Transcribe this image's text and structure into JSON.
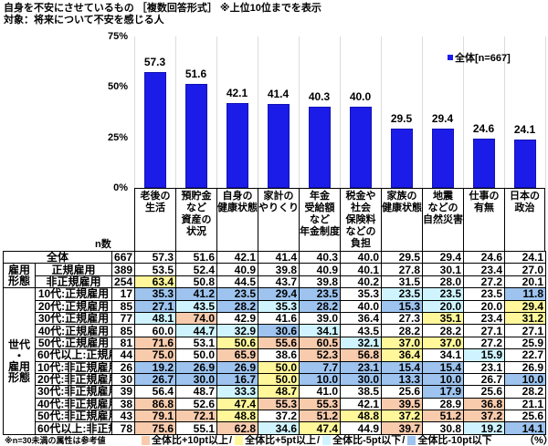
{
  "header": {
    "title": "自身を不安にさせているもの ［複数回答形式］ ※上位10位までを表示",
    "subtitle": "対象：将来について不安を感じる人"
  },
  "chart_data": {
    "type": "bar",
    "title": "自身を不安にさせているもの［複数回答形式］※上位10位までを表示",
    "subtitle": "対象：将来について不安を感じる人",
    "categories": [
      "老後の生活",
      "預貯金など資産の状況",
      "自身の健康状態",
      "家計のやりくり",
      "年金受給額など年金制度",
      "税金や社会保険料などの負担",
      "家族の健康状態",
      "地震などの自然災害",
      "仕事の有無",
      "日本の政治"
    ],
    "category_lines": [
      [
        "老後の",
        "生活"
      ],
      [
        "預貯金",
        "など",
        "資産の",
        "状況"
      ],
      [
        "自身の",
        "健康状態"
      ],
      [
        "家計の",
        "やりくり"
      ],
      [
        "年金",
        "受給額",
        "など",
        "年金制度"
      ],
      [
        "税金や",
        "社会",
        "保険料",
        "などの",
        "負担"
      ],
      [
        "家族の",
        "健康状態"
      ],
      [
        "地震",
        "などの",
        "自然災害"
      ],
      [
        "仕事の",
        "有無"
      ],
      [
        "日本の",
        "政治"
      ]
    ],
    "series": [
      {
        "name": "全体[n=667]",
        "values": [
          57.3,
          51.6,
          42.1,
          41.4,
          40.3,
          40.0,
          29.5,
          29.4,
          24.6,
          24.1
        ]
      }
    ],
    "values": [
      57.3,
      51.6,
      42.1,
      41.4,
      40.3,
      40.0,
      29.5,
      29.4,
      24.6,
      24.1
    ],
    "value_labels": [
      "57.3",
      "51.6",
      "42.1",
      "41.4",
      "40.3",
      "40.0",
      "29.5",
      "29.4",
      "24.6",
      "24.1"
    ],
    "xlabel": "",
    "ylabel": "",
    "ylim": [
      0,
      75
    ],
    "yticks": [
      {
        "label": "75%",
        "value": 75
      },
      {
        "label": "50%",
        "value": 50
      },
      {
        "label": "25%",
        "value": 25
      },
      {
        "label": "0%",
        "value": 0
      }
    ],
    "grid": "vertical",
    "legend": {
      "position": "top-right",
      "entries": [
        "全体[n=667]"
      ]
    },
    "bar_color": "#1c1ce8"
  },
  "table": {
    "n_label": "n数",
    "groups": {
      "employment": [
        "雇用",
        "形態"
      ],
      "age_employment": [
        "世代",
        "・",
        "雇用",
        "形態"
      ]
    },
    "rows": [
      {
        "label": "全体",
        "n": "667",
        "values": [
          "57.3",
          "51.6",
          "42.1",
          "41.4",
          "40.3",
          "40.0",
          "29.5",
          "29.4",
          "24.6",
          "24.1"
        ],
        "hl": [
          "",
          "",
          "",
          "",
          "",
          "",
          "",
          "",
          "",
          ""
        ]
      },
      {
        "label": "正規雇用",
        "n": "389",
        "values": [
          "53.5",
          "52.4",
          "40.9",
          "39.8",
          "40.9",
          "40.1",
          "27.8",
          "30.1",
          "23.4",
          "27.0"
        ],
        "hl": [
          "",
          "",
          "",
          "",
          "",
          "",
          "",
          "",
          "",
          ""
        ]
      },
      {
        "label": "非正規雇用",
        "n": "254",
        "values": [
          "63.4",
          "50.8",
          "44.5",
          "43.7",
          "39.8",
          "40.2",
          "31.5",
          "28.0",
          "27.2",
          "20.1"
        ],
        "hl": [
          "y",
          "",
          "",
          "",
          "",
          "",
          "",
          "",
          "",
          ""
        ]
      },
      {
        "label": "10代:正規雇用",
        "n": "17",
        "values": [
          "35.3",
          "41.2",
          "23.5",
          "29.4",
          "23.5",
          "35.3",
          "23.5",
          "23.5",
          "23.5",
          "11.8"
        ],
        "hl": [
          "b",
          "b",
          "b",
          "b",
          "b",
          "",
          "lb",
          "lb",
          "",
          "b"
        ]
      },
      {
        "label": "20代:正規雇用",
        "n": "85",
        "values": [
          "27.1",
          "43.5",
          "28.2",
          "35.3",
          "28.2",
          "40.0",
          "15.3",
          "20.0",
          "20.0",
          "29.4"
        ],
        "hl": [
          "b",
          "lb",
          "b",
          "lb",
          "b",
          "",
          "b",
          "lb",
          "",
          "y"
        ]
      },
      {
        "label": "30代:正規雇用",
        "n": "77",
        "values": [
          "48.1",
          "74.0",
          "42.9",
          "41.6",
          "39.0",
          "36.4",
          "27.3",
          "35.1",
          "23.4",
          "31.2"
        ],
        "hl": [
          "lb",
          "o",
          "",
          "",
          "",
          "",
          "",
          "y",
          "",
          "y"
        ]
      },
      {
        "label": "40代:正規雇用",
        "n": "85",
        "values": [
          "60.0",
          "44.7",
          "32.9",
          "30.6",
          "34.1",
          "43.5",
          "28.2",
          "28.2",
          "27.1",
          "27.1"
        ],
        "hl": [
          "",
          "lb",
          "lb",
          "b",
          "lb",
          "",
          "",
          "",
          "",
          ""
        ]
      },
      {
        "label": "50代:正規雇用",
        "n": "81",
        "values": [
          "71.6",
          "53.1",
          "50.6",
          "55.6",
          "60.5",
          "32.1",
          "37.0",
          "37.0",
          "27.2",
          "25.9"
        ],
        "hl": [
          "o",
          "",
          "y",
          "o",
          "o",
          "lb",
          "y",
          "y",
          "",
          ""
        ]
      },
      {
        "label": "60代以上:正規雇用",
        "n": "44",
        "values": [
          "75.0",
          "50.0",
          "65.9",
          "38.6",
          "52.3",
          "56.8",
          "36.4",
          "34.1",
          "15.9",
          "22.7"
        ],
        "hl": [
          "o",
          "",
          "o",
          "",
          "o",
          "o",
          "y",
          "",
          "lb",
          ""
        ]
      },
      {
        "label": "10代:非正規雇用",
        "n": "26",
        "values": [
          "19.2",
          "26.9",
          "26.9",
          "50.0",
          "7.7",
          "23.1",
          "15.4",
          "15.4",
          "23.1",
          "26.9"
        ],
        "hl": [
          "b",
          "b",
          "b",
          "y",
          "b",
          "b",
          "b",
          "b",
          "",
          ""
        ]
      },
      {
        "label": "20代:非正規雇用",
        "n": "30",
        "values": [
          "26.7",
          "30.0",
          "16.7",
          "50.0",
          "10.0",
          "30.0",
          "13.3",
          "10.0",
          "26.7",
          "10.0"
        ],
        "hl": [
          "b",
          "b",
          "b",
          "y",
          "b",
          "b",
          "b",
          "b",
          "",
          "b"
        ]
      },
      {
        "label": "30代:非正規雇用",
        "n": "39",
        "values": [
          "56.4",
          "48.7",
          "33.3",
          "48.7",
          "41.0",
          "38.5",
          "25.6",
          "17.9",
          "25.6",
          "28.2"
        ],
        "hl": [
          "",
          "",
          "lb",
          "y",
          "",
          "",
          "",
          "b",
          "",
          ""
        ]
      },
      {
        "label": "40代:非正規雇用",
        "n": "38",
        "values": [
          "86.8",
          "52.6",
          "47.4",
          "55.3",
          "55.3",
          "42.1",
          "39.5",
          "28.9",
          "36.8",
          "21.1"
        ],
        "hl": [
          "o",
          "",
          "y",
          "o",
          "o",
          "",
          "o",
          "",
          "o",
          ""
        ]
      },
      {
        "label": "50代:非正規雇用",
        "n": "43",
        "values": [
          "79.1",
          "72.1",
          "48.8",
          "37.2",
          "51.2",
          "48.8",
          "37.2",
          "51.2",
          "37.2",
          "25.6"
        ],
        "hl": [
          "o",
          "o",
          "y",
          "",
          "o",
          "y",
          "y",
          "o",
          "o",
          ""
        ]
      },
      {
        "label": "60代以上:非正規雇用",
        "n": "78",
        "values": [
          "75.6",
          "55.1",
          "62.8",
          "34.6",
          "47.4",
          "44.9",
          "39.7",
          "30.8",
          "19.2",
          "14.1"
        ],
        "hl": [
          "o",
          "",
          "o",
          "lb",
          "y",
          "",
          "o",
          "",
          "lb",
          "b"
        ]
      }
    ]
  },
  "footer": {
    "note": "※n=30未満の属性は参考値",
    "legend": [
      {
        "key": "o",
        "label": "全体比+10pt以上",
        "color": "#f8cbad",
        "sep": "/"
      },
      {
        "key": "y",
        "label": "全体比+5pt以上",
        "color": "#fff79a",
        "sep": "/"
      },
      {
        "key": "lb",
        "label": "全体比-5pt以下",
        "color": "#cff4ff",
        "sep": "/"
      },
      {
        "key": "b",
        "label": "全体比-10pt以下",
        "color": "#9dc3ee",
        "sep": ""
      }
    ],
    "unit": "（%）"
  }
}
